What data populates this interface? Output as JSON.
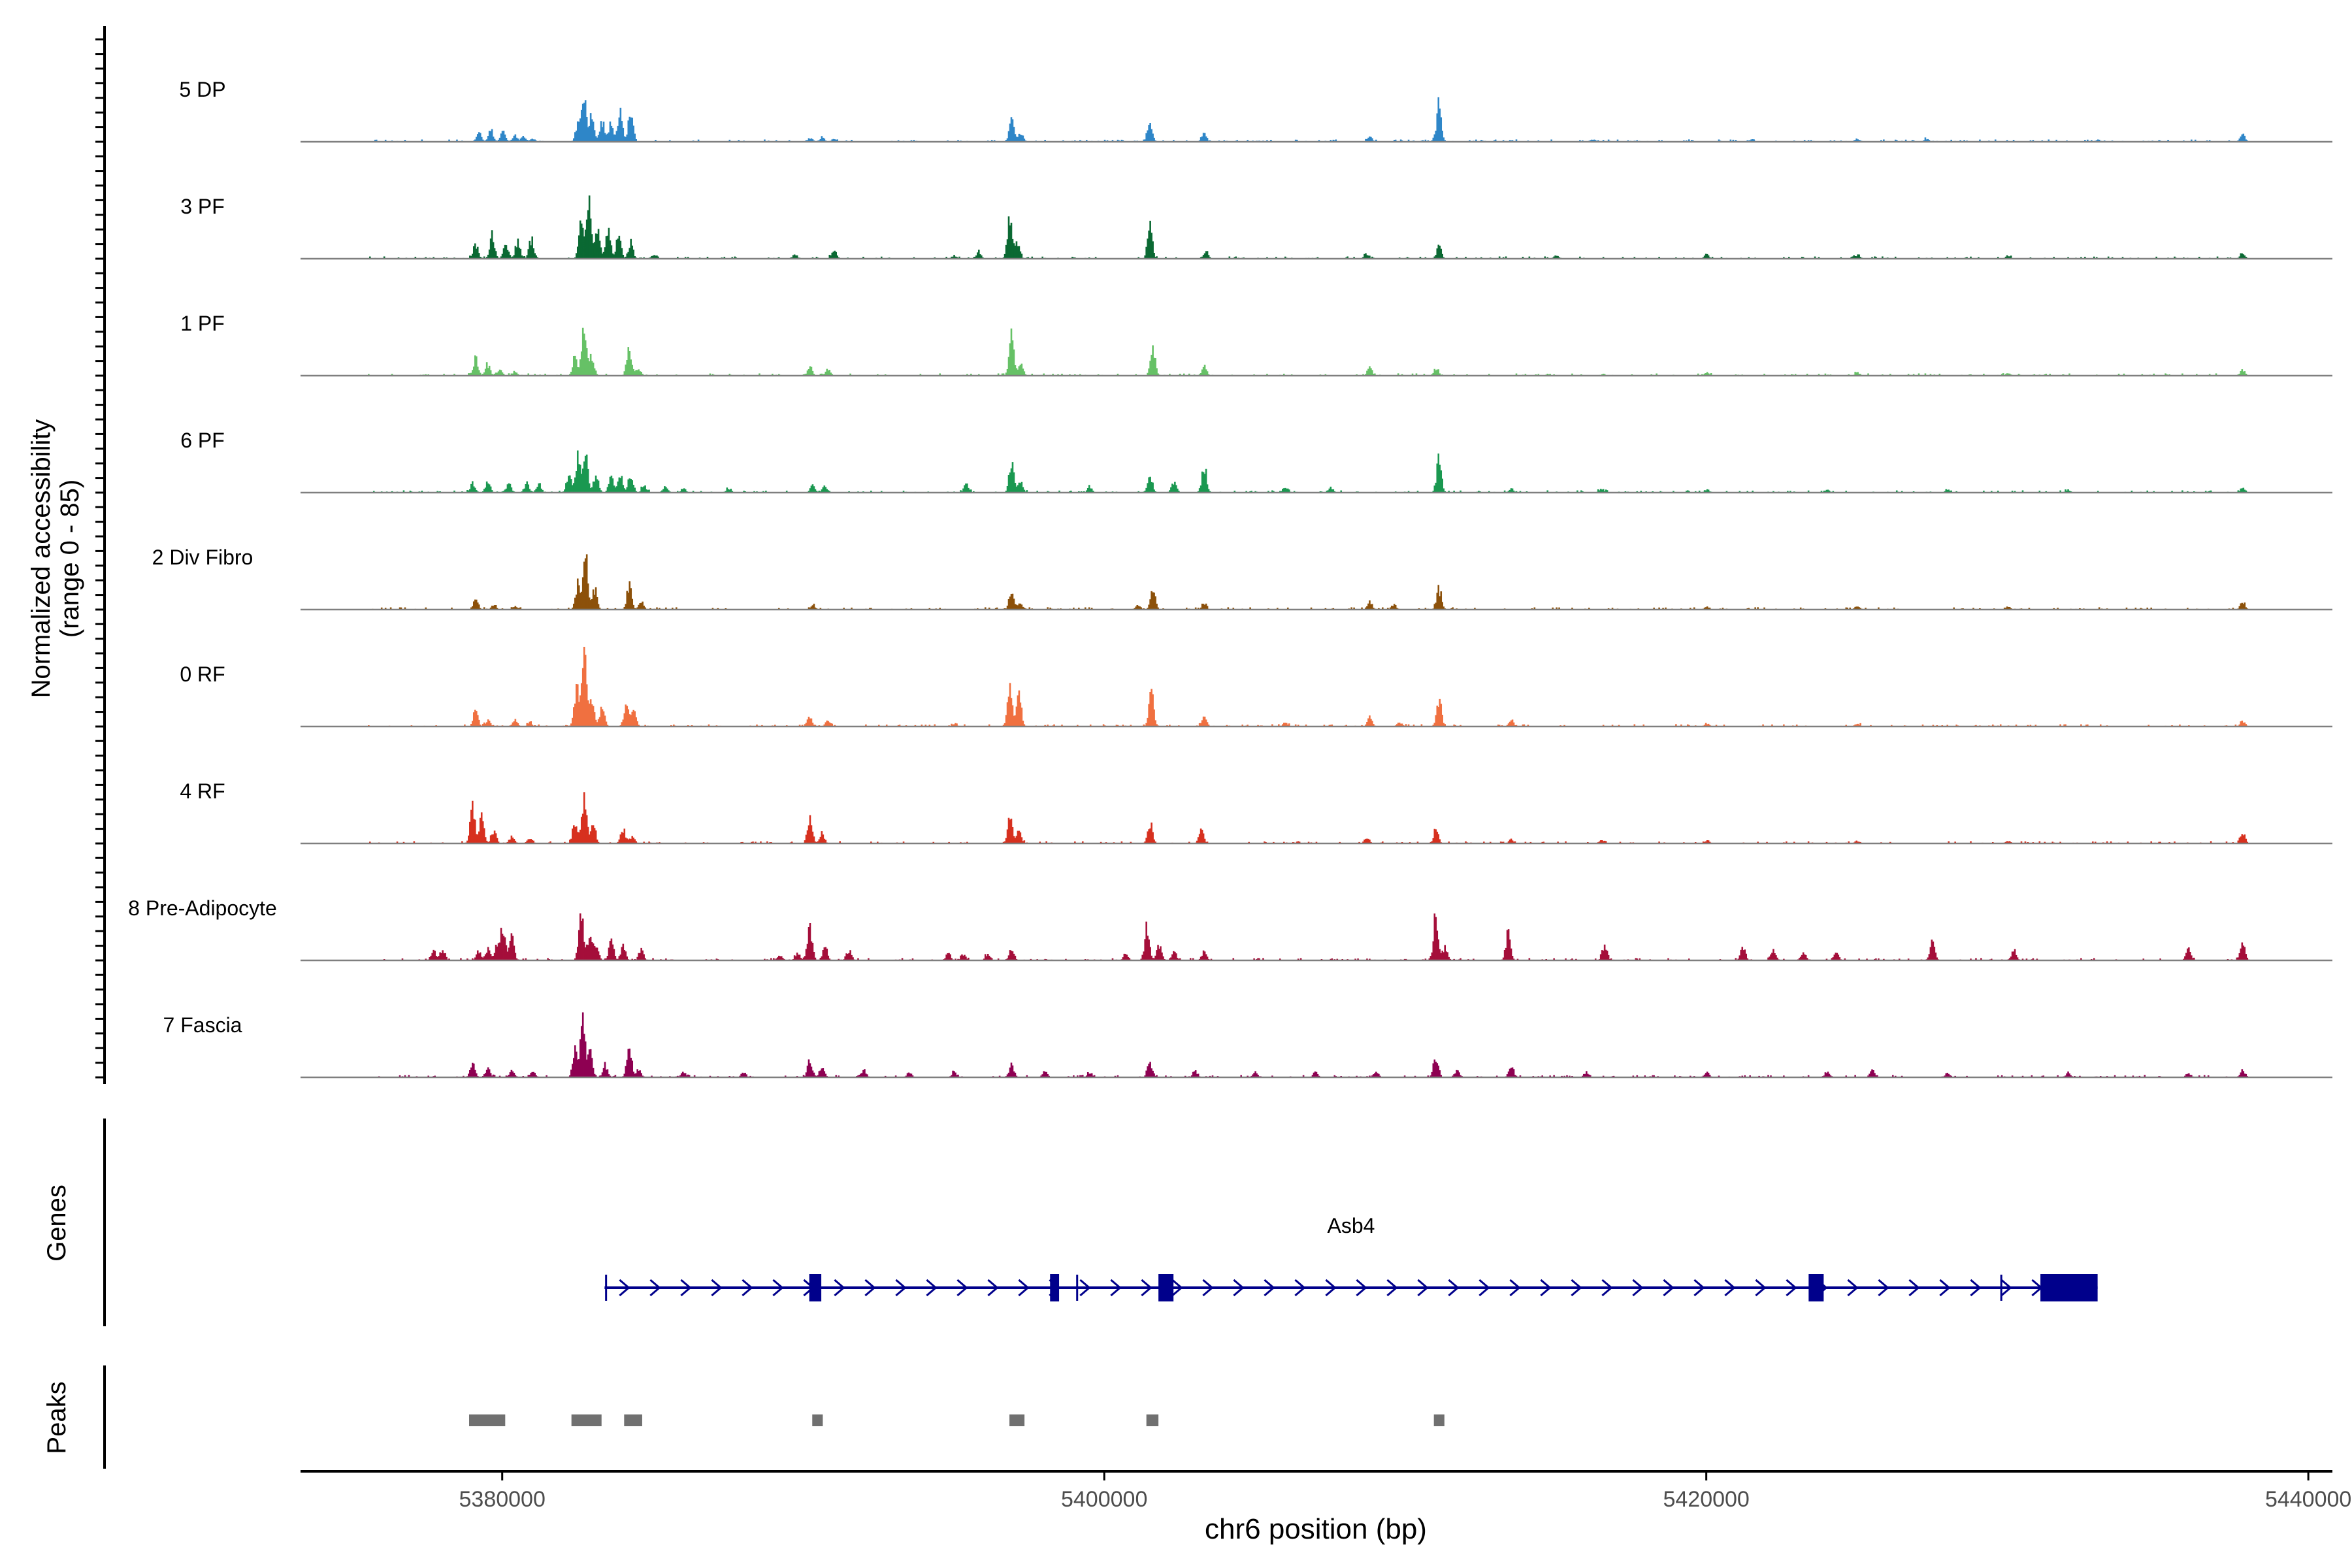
{
  "chart_data": {
    "type": "area",
    "title": "",
    "chromosome": "chr6",
    "xlabel": "chr6 position (bp)",
    "ylabel_line1": "Normalized accessibility",
    "ylabel_line2": "(range 0 - 85)",
    "yrange": [
      0,
      85
    ],
    "xlim": [
      5373300,
      5440800
    ],
    "x_ticks": [
      5380000,
      5400000,
      5420000,
      5440000
    ],
    "x_tick_labels": [
      "5380000",
      "5400000",
      "5420000",
      "5440000"
    ],
    "tracks": [
      {
        "name": "5 DP",
        "label": "5 DP",
        "color": "#2E86C8",
        "peaks": [
          [
            5379200,
            18
          ],
          [
            5379600,
            24
          ],
          [
            5380000,
            20
          ],
          [
            5380400,
            14
          ],
          [
            5380700,
            10
          ],
          [
            5381000,
            6
          ],
          [
            5382500,
            36
          ],
          [
            5382700,
            90
          ],
          [
            5382950,
            48
          ],
          [
            5383300,
            40
          ],
          [
            5383600,
            38
          ],
          [
            5383900,
            58
          ],
          [
            5384250,
            62
          ],
          [
            5390200,
            7
          ],
          [
            5390600,
            8
          ],
          [
            5391000,
            6
          ],
          [
            5396900,
            44
          ],
          [
            5397200,
            18
          ],
          [
            5401500,
            42
          ],
          [
            5403300,
            16
          ],
          [
            5408800,
            9
          ],
          [
            5411100,
            78
          ],
          [
            5416200,
            5
          ],
          [
            5421500,
            5
          ],
          [
            5425000,
            6
          ],
          [
            5427300,
            5
          ],
          [
            5433000,
            4
          ],
          [
            5437800,
            14
          ]
        ]
      },
      {
        "name": "3 PF",
        "label": "3 PF",
        "color": "#0B6933",
        "peaks": [
          [
            5379100,
            30
          ],
          [
            5379650,
            44
          ],
          [
            5380100,
            32
          ],
          [
            5380500,
            38
          ],
          [
            5380950,
            40
          ],
          [
            5382600,
            80
          ],
          [
            5382850,
            115
          ],
          [
            5383150,
            60
          ],
          [
            5383500,
            54
          ],
          [
            5383850,
            46
          ],
          [
            5384250,
            32
          ],
          [
            5385000,
            8
          ],
          [
            5389700,
            8
          ],
          [
            5391000,
            18
          ],
          [
            5395000,
            6
          ],
          [
            5395800,
            14
          ],
          [
            5396850,
            96
          ],
          [
            5397100,
            30
          ],
          [
            5401500,
            62
          ],
          [
            5403350,
            14
          ],
          [
            5408700,
            10
          ],
          [
            5411100,
            24
          ],
          [
            5415000,
            7
          ],
          [
            5420000,
            8
          ],
          [
            5425000,
            7
          ],
          [
            5430000,
            6
          ],
          [
            5437800,
            10
          ]
        ]
      },
      {
        "name": "1 PF",
        "label": "1 PF",
        "color": "#66C166",
        "peaks": [
          [
            5379100,
            34
          ],
          [
            5379500,
            22
          ],
          [
            5379900,
            12
          ],
          [
            5380400,
            8
          ],
          [
            5382400,
            38
          ],
          [
            5382700,
            96
          ],
          [
            5382950,
            40
          ],
          [
            5384200,
            60
          ],
          [
            5384500,
            16
          ],
          [
            5390200,
            18
          ],
          [
            5390800,
            12
          ],
          [
            5396900,
            82
          ],
          [
            5397200,
            24
          ],
          [
            5401600,
            56
          ],
          [
            5403300,
            18
          ],
          [
            5408800,
            16
          ],
          [
            5411000,
            14
          ],
          [
            5420000,
            6
          ],
          [
            5425000,
            6
          ],
          [
            5430000,
            5
          ],
          [
            5437800,
            12
          ]
        ]
      },
      {
        "name": "6 PF",
        "label": "6 PF",
        "color": "#1A9850",
        "peaks": [
          [
            5379000,
            18
          ],
          [
            5379500,
            22
          ],
          [
            5380200,
            20
          ],
          [
            5380800,
            20
          ],
          [
            5381200,
            18
          ],
          [
            5382200,
            40
          ],
          [
            5382500,
            70
          ],
          [
            5382750,
            75
          ],
          [
            5383100,
            38
          ],
          [
            5383600,
            30
          ],
          [
            5383900,
            36
          ],
          [
            5384250,
            40
          ],
          [
            5384700,
            14
          ],
          [
            5385400,
            12
          ],
          [
            5386000,
            8
          ],
          [
            5387500,
            8
          ],
          [
            5390300,
            16
          ],
          [
            5390700,
            14
          ],
          [
            5395400,
            16
          ],
          [
            5396900,
            62
          ],
          [
            5397200,
            22
          ],
          [
            5399500,
            10
          ],
          [
            5401500,
            36
          ],
          [
            5402300,
            22
          ],
          [
            5403300,
            56
          ],
          [
            5406000,
            12
          ],
          [
            5407500,
            10
          ],
          [
            5411100,
            70
          ],
          [
            5413500,
            7
          ],
          [
            5416500,
            8
          ],
          [
            5420000,
            6
          ],
          [
            5424000,
            6
          ],
          [
            5428000,
            6
          ],
          [
            5432000,
            5
          ],
          [
            5437800,
            9
          ]
        ]
      },
      {
        "name": "2 Div Fibro",
        "label": "2 Div Fibro",
        "color": "#8C510A",
        "peaks": [
          [
            5379100,
            22
          ],
          [
            5379700,
            8
          ],
          [
            5380400,
            6
          ],
          [
            5382500,
            56
          ],
          [
            5382750,
            102
          ],
          [
            5383050,
            40
          ],
          [
            5384200,
            48
          ],
          [
            5384600,
            14
          ],
          [
            5390300,
            8
          ],
          [
            5396900,
            36
          ],
          [
            5397200,
            10
          ],
          [
            5401100,
            8
          ],
          [
            5401600,
            42
          ],
          [
            5403300,
            10
          ],
          [
            5408800,
            16
          ],
          [
            5409600,
            10
          ],
          [
            5411100,
            40
          ],
          [
            5420000,
            6
          ],
          [
            5425000,
            6
          ],
          [
            5430000,
            5
          ],
          [
            5437800,
            16
          ]
        ]
      },
      {
        "name": "0 RF",
        "label": "0 RF",
        "color": "#F07040",
        "peaks": [
          [
            5379100,
            28
          ],
          [
            5379500,
            12
          ],
          [
            5380400,
            14
          ],
          [
            5380900,
            8
          ],
          [
            5382450,
            82
          ],
          [
            5382700,
            140
          ],
          [
            5382950,
            64
          ],
          [
            5383300,
            40
          ],
          [
            5384100,
            42
          ],
          [
            5384350,
            30
          ],
          [
            5390200,
            20
          ],
          [
            5390800,
            12
          ],
          [
            5395000,
            6
          ],
          [
            5396850,
            88
          ],
          [
            5397150,
            60
          ],
          [
            5401550,
            72
          ],
          [
            5403300,
            18
          ],
          [
            5406000,
            8
          ],
          [
            5408800,
            18
          ],
          [
            5409800,
            8
          ],
          [
            5411100,
            56
          ],
          [
            5413500,
            10
          ],
          [
            5420000,
            6
          ],
          [
            5425000,
            5
          ],
          [
            5437800,
            10
          ]
        ]
      },
      {
        "name": "4 RF",
        "label": "4 RF",
        "color": "#D7301F",
        "peaks": [
          [
            5379000,
            70
          ],
          [
            5379300,
            54
          ],
          [
            5379700,
            26
          ],
          [
            5380300,
            14
          ],
          [
            5380900,
            10
          ],
          [
            5382400,
            48
          ],
          [
            5382700,
            100
          ],
          [
            5383000,
            40
          ],
          [
            5384000,
            28
          ],
          [
            5384300,
            14
          ],
          [
            5390200,
            48
          ],
          [
            5390600,
            20
          ],
          [
            5396850,
            52
          ],
          [
            5397150,
            24
          ],
          [
            5401500,
            44
          ],
          [
            5403200,
            28
          ],
          [
            5408700,
            10
          ],
          [
            5411000,
            26
          ],
          [
            5413500,
            7
          ],
          [
            5416500,
            6
          ],
          [
            5420000,
            6
          ],
          [
            5425000,
            5
          ],
          [
            5430000,
            5
          ],
          [
            5437800,
            22
          ]
        ]
      },
      {
        "name": "8 Pre-Adipocyte",
        "label": "8 Pre-Adipocyte",
        "color": "#A50F3A",
        "peaks": [
          [
            5377700,
            20
          ],
          [
            5378000,
            22
          ],
          [
            5379200,
            16
          ],
          [
            5379500,
            22
          ],
          [
            5379800,
            30
          ],
          [
            5380000,
            68
          ],
          [
            5380300,
            46
          ],
          [
            5382600,
            90
          ],
          [
            5382900,
            60
          ],
          [
            5383100,
            28
          ],
          [
            5383600,
            40
          ],
          [
            5384000,
            26
          ],
          [
            5384600,
            22
          ],
          [
            5389200,
            12
          ],
          [
            5389800,
            14
          ],
          [
            5390200,
            66
          ],
          [
            5390700,
            28
          ],
          [
            5391500,
            20
          ],
          [
            5394800,
            14
          ],
          [
            5395300,
            12
          ],
          [
            5396100,
            12
          ],
          [
            5396900,
            26
          ],
          [
            5400700,
            14
          ],
          [
            5401400,
            66
          ],
          [
            5401800,
            34
          ],
          [
            5402300,
            18
          ],
          [
            5403300,
            18
          ],
          [
            5411000,
            96
          ],
          [
            5411300,
            26
          ],
          [
            5413400,
            56
          ],
          [
            5416600,
            30
          ],
          [
            5421200,
            26
          ],
          [
            5422200,
            24
          ],
          [
            5423200,
            16
          ],
          [
            5424300,
            14
          ],
          [
            5427500,
            36
          ],
          [
            5430200,
            20
          ],
          [
            5436000,
            22
          ],
          [
            5437800,
            40
          ]
        ]
      },
      {
        "name": "7 Fascia",
        "label": "7 Fascia",
        "color": "#8E0152",
        "peaks": [
          [
            5379000,
            28
          ],
          [
            5379500,
            18
          ],
          [
            5380300,
            14
          ],
          [
            5381000,
            12
          ],
          [
            5382400,
            54
          ],
          [
            5382650,
            120
          ],
          [
            5382900,
            48
          ],
          [
            5383400,
            24
          ],
          [
            5384200,
            58
          ],
          [
            5384500,
            16
          ],
          [
            5386000,
            10
          ],
          [
            5388000,
            10
          ],
          [
            5390200,
            36
          ],
          [
            5390600,
            22
          ],
          [
            5392000,
            12
          ],
          [
            5393500,
            10
          ],
          [
            5395000,
            10
          ],
          [
            5396900,
            26
          ],
          [
            5398000,
            12
          ],
          [
            5399500,
            10
          ],
          [
            5401500,
            32
          ],
          [
            5403000,
            12
          ],
          [
            5405000,
            10
          ],
          [
            5407000,
            10
          ],
          [
            5409000,
            12
          ],
          [
            5411000,
            46
          ],
          [
            5411700,
            14
          ],
          [
            5413500,
            24
          ],
          [
            5416000,
            10
          ],
          [
            5420000,
            10
          ],
          [
            5424000,
            12
          ],
          [
            5425500,
            14
          ],
          [
            5428000,
            8
          ],
          [
            5432000,
            8
          ],
          [
            5436000,
            8
          ],
          [
            5437800,
            14
          ]
        ]
      }
    ],
    "genes": [
      {
        "name": "Asb4",
        "start": 5383400,
        "end": 5433000,
        "strand": "+",
        "color": "#00008B",
        "exons": [
          [
            5390200,
            5390600
          ],
          [
            5398200,
            5398500
          ],
          [
            5401800,
            5402300
          ],
          [
            5423400,
            5423900
          ],
          [
            5431100,
            5433000
          ]
        ],
        "ticks": [
          5383450,
          5399100,
          5429800
        ]
      }
    ],
    "peak_regions": [
      [
        5378900,
        5380100
      ],
      [
        5382300,
        5383300
      ],
      [
        5384050,
        5384650
      ],
      [
        5390300,
        5390650
      ],
      [
        5396850,
        5397350
      ],
      [
        5401400,
        5401800
      ],
      [
        5410950,
        5411300
      ]
    ],
    "peak_color": "#707070",
    "axis_color": "#000000"
  },
  "labels": {
    "genes_panel": "Genes",
    "peaks_panel": "Peaks"
  }
}
